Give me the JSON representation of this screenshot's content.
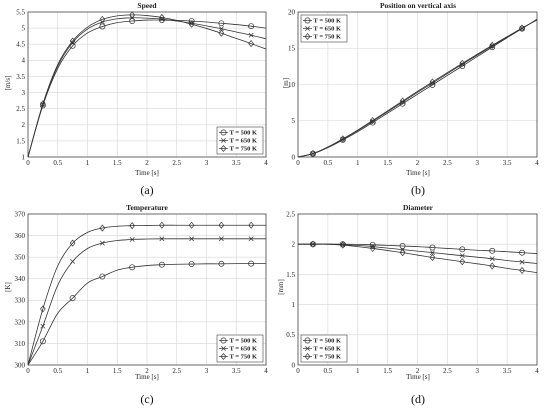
{
  "chart_data": [
    {
      "type": "line",
      "title": "Speed",
      "xlabel": "Time [s]",
      "ylabel": "[m/s]",
      "xlim": [
        0,
        4
      ],
      "ylim": [
        1,
        5.5
      ],
      "xticks": [
        0,
        0.5,
        1,
        1.5,
        2,
        2.5,
        3,
        3.5,
        4
      ],
      "yticks": [
        1,
        1.5,
        2,
        2.5,
        3,
        3.5,
        4,
        4.5,
        5,
        5.5
      ],
      "xticklabels": [
        "0",
        "0.5",
        "1",
        "1.5",
        "2",
        "2.5",
        "3",
        "3.5",
        "4"
      ],
      "yticklabels": [
        "1",
        "1.5",
        "2",
        "2.5",
        "3",
        "3.5",
        "4",
        "4.5",
        "5",
        "5.5"
      ],
      "grid": true,
      "legend_position": "bottom-right",
      "caption": "(a)",
      "series": [
        {
          "name": "T = 500 K",
          "marker": "circle",
          "x": [
            0,
            0.25,
            0.5,
            0.75,
            1,
            1.25,
            1.5,
            1.75,
            2,
            2.25,
            2.5,
            2.75,
            3,
            3.25,
            3.5,
            3.75,
            4
          ],
          "y": [
            1.0,
            2.6,
            3.75,
            4.45,
            4.85,
            5.05,
            5.17,
            5.22,
            5.25,
            5.25,
            5.24,
            5.22,
            5.19,
            5.15,
            5.11,
            5.06,
            5.0
          ]
        },
        {
          "name": "T = 650 K",
          "marker": "x",
          "x": [
            0,
            0.25,
            0.5,
            0.75,
            1,
            1.25,
            1.5,
            1.75,
            2,
            2.25,
            2.5,
            2.75,
            3,
            3.25,
            3.5,
            3.75,
            4
          ],
          "y": [
            1.0,
            2.63,
            3.82,
            4.55,
            4.97,
            5.19,
            5.29,
            5.32,
            5.31,
            5.28,
            5.22,
            5.15,
            5.07,
            4.98,
            4.88,
            4.78,
            4.67
          ]
        },
        {
          "name": "T = 750 K",
          "marker": "diamond",
          "x": [
            0,
            0.25,
            0.5,
            0.75,
            1,
            1.25,
            1.5,
            1.75,
            2,
            2.25,
            2.5,
            2.75,
            3,
            3.25,
            3.5,
            3.75,
            4
          ],
          "y": [
            1.0,
            2.65,
            3.87,
            4.6,
            5.03,
            5.27,
            5.38,
            5.41,
            5.39,
            5.33,
            5.24,
            5.12,
            4.99,
            4.84,
            4.68,
            4.52,
            4.35
          ]
        }
      ]
    },
    {
      "type": "line",
      "title": "Position on vertical axis",
      "xlabel": "Time [s]",
      "ylabel": "[m]",
      "xlim": [
        0,
        4
      ],
      "ylim": [
        0,
        20
      ],
      "xticks": [
        0,
        0.5,
        1,
        1.5,
        2,
        2.5,
        3,
        3.5,
        4
      ],
      "yticks": [
        0,
        5,
        10,
        15,
        20
      ],
      "xticklabels": [
        "0",
        "0.5",
        "1",
        "1.5",
        "2",
        "2.5",
        "3",
        "3.5",
        "4"
      ],
      "yticklabels": [
        "0",
        "5",
        "10",
        "15",
        "20"
      ],
      "grid": true,
      "legend_position": "top-left",
      "caption": "(b)",
      "series": [
        {
          "name": "T = 500 K",
          "marker": "circle",
          "x": [
            0,
            0.25,
            0.5,
            0.75,
            1,
            1.25,
            1.5,
            1.75,
            2,
            2.25,
            2.5,
            2.75,
            3,
            3.25,
            3.5,
            3.75,
            4
          ],
          "y": [
            0,
            0.45,
            1.3,
            2.35,
            3.5,
            4.75,
            6.05,
            7.35,
            8.65,
            9.95,
            11.25,
            12.55,
            13.85,
            15.15,
            16.45,
            17.7,
            19.0
          ]
        },
        {
          "name": "T = 650 K",
          "marker": "x",
          "x": [
            0,
            0.25,
            0.5,
            0.75,
            1,
            1.25,
            1.5,
            1.75,
            2,
            2.25,
            2.5,
            2.75,
            3,
            3.25,
            3.5,
            3.75,
            4
          ],
          "y": [
            0,
            0.47,
            1.35,
            2.45,
            3.65,
            4.93,
            6.25,
            7.58,
            8.9,
            10.2,
            11.5,
            12.8,
            14.05,
            15.3,
            16.55,
            17.75,
            18.95
          ]
        },
        {
          "name": "T = 750 K",
          "marker": "diamond",
          "x": [
            0,
            0.25,
            0.5,
            0.75,
            1,
            1.25,
            1.5,
            1.75,
            2,
            2.25,
            2.5,
            2.75,
            3,
            3.25,
            3.5,
            3.75,
            4
          ],
          "y": [
            0,
            0.48,
            1.38,
            2.5,
            3.72,
            5.03,
            6.37,
            7.72,
            9.05,
            10.35,
            11.65,
            12.92,
            14.17,
            15.4,
            16.6,
            17.78,
            18.9
          ]
        }
      ]
    },
    {
      "type": "line",
      "title": "Temperature",
      "xlabel": "Time [s]",
      "ylabel": "[K]",
      "xlim": [
        0,
        4
      ],
      "ylim": [
        300,
        370
      ],
      "xticks": [
        0,
        0.5,
        1,
        1.5,
        2,
        2.5,
        3,
        3.5,
        4
      ],
      "yticks": [
        300,
        310,
        320,
        330,
        340,
        350,
        360,
        370
      ],
      "xticklabels": [
        "0",
        "0.5",
        "1",
        "1.5",
        "2",
        "2.5",
        "3",
        "3.5",
        "4"
      ],
      "yticklabels": [
        "300",
        "310",
        "320",
        "330",
        "340",
        "350",
        "360",
        "370"
      ],
      "grid": true,
      "legend_position": "bottom-right",
      "caption": "(c)",
      "series": [
        {
          "name": "T = 500 K",
          "marker": "circle",
          "x": [
            0,
            0.25,
            0.5,
            0.75,
            1,
            1.25,
            1.5,
            1.75,
            2,
            2.25,
            2.5,
            2.75,
            3,
            3.25,
            3.5,
            3.75,
            4
          ],
          "y": [
            300,
            311,
            324,
            331,
            338,
            341,
            344,
            345.3,
            346.1,
            346.5,
            346.7,
            346.8,
            346.9,
            346.9,
            347,
            347,
            347
          ]
        },
        {
          "name": "T = 650 K",
          "marker": "x",
          "x": [
            0,
            0.25,
            0.5,
            0.75,
            1,
            1.25,
            1.5,
            1.75,
            2,
            2.25,
            2.5,
            2.75,
            3,
            3.25,
            3.5,
            3.75,
            4
          ],
          "y": [
            300,
            318,
            337,
            348,
            354,
            356.5,
            357.7,
            358.2,
            358.4,
            358.5,
            358.5,
            358.5,
            358.5,
            358.5,
            358.5,
            358.5,
            358.5
          ]
        },
        {
          "name": "T = 750 K",
          "marker": "diamond",
          "x": [
            0,
            0.25,
            0.5,
            0.75,
            1,
            1.25,
            1.5,
            1.75,
            2,
            2.25,
            2.5,
            2.75,
            3,
            3.25,
            3.5,
            3.75,
            4
          ],
          "y": [
            300,
            326,
            346,
            356.5,
            361.5,
            363.5,
            364.3,
            364.6,
            364.7,
            364.8,
            364.8,
            364.8,
            364.8,
            364.8,
            364.8,
            364.8,
            364.8
          ]
        }
      ]
    },
    {
      "type": "line",
      "title": "Diameter",
      "xlabel": "Time [s]",
      "ylabel": "[mm]",
      "xlim": [
        0,
        4
      ],
      "ylim": [
        0,
        2.5
      ],
      "xticks": [
        0,
        0.5,
        1,
        1.5,
        2,
        2.5,
        3,
        3.5,
        4
      ],
      "yticks": [
        0,
        0.5,
        1,
        1.5,
        2,
        2.5
      ],
      "xticklabels": [
        "0",
        "0.5",
        "1",
        "1.5",
        "2",
        "2.5",
        "3",
        "3.5",
        "4"
      ],
      "yticklabels": [
        "0",
        "0.5",
        "1",
        "1.5",
        "2",
        "2.5"
      ],
      "grid": true,
      "legend_position": "bottom-left",
      "caption": "(d)",
      "series": [
        {
          "name": "T = 500 K",
          "marker": "circle",
          "x": [
            0,
            0.25,
            0.5,
            0.75,
            1,
            1.25,
            1.5,
            1.75,
            2,
            2.25,
            2.5,
            2.75,
            3,
            3.25,
            3.5,
            3.75,
            4
          ],
          "y": [
            2.0,
            2.0,
            2.0,
            2.0,
            1.997,
            1.99,
            1.98,
            1.97,
            1.96,
            1.945,
            1.93,
            1.915,
            1.9,
            1.89,
            1.875,
            1.86,
            1.845
          ]
        },
        {
          "name": "T = 650 K",
          "marker": "x",
          "x": [
            0,
            0.25,
            0.5,
            0.75,
            1,
            1.25,
            1.5,
            1.75,
            2,
            2.25,
            2.5,
            2.75,
            3,
            3.25,
            3.5,
            3.75,
            4
          ],
          "y": [
            2.0,
            2.0,
            2.0,
            1.99,
            1.98,
            1.96,
            1.935,
            1.91,
            1.885,
            1.86,
            1.835,
            1.81,
            1.785,
            1.76,
            1.73,
            1.705,
            1.68
          ]
        },
        {
          "name": "T = 750 K",
          "marker": "diamond",
          "x": [
            0,
            0.25,
            0.5,
            0.75,
            1,
            1.25,
            1.5,
            1.75,
            2,
            2.25,
            2.5,
            2.75,
            3,
            3.25,
            3.5,
            3.75,
            4
          ],
          "y": [
            2.0,
            2.0,
            2.0,
            1.985,
            1.96,
            1.93,
            1.895,
            1.86,
            1.82,
            1.78,
            1.745,
            1.71,
            1.675,
            1.64,
            1.6,
            1.565,
            1.53
          ]
        }
      ]
    }
  ]
}
